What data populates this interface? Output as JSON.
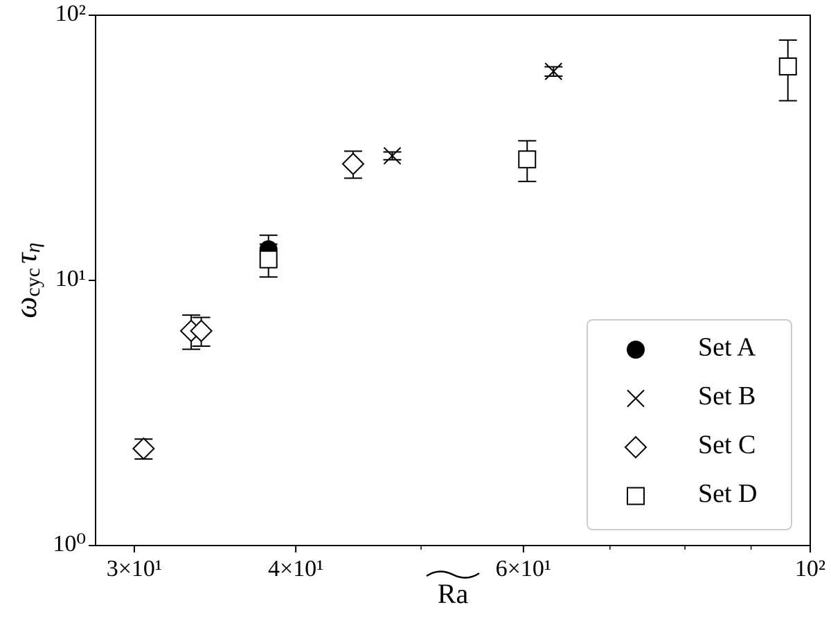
{
  "chart_data": {
    "type": "scatter",
    "xlabel": "Ra",
    "ylabel": [
      "ω",
      "cyc",
      "τ",
      "η"
    ],
    "xscale": "log",
    "yscale": "log",
    "xlim": [
      28,
      100
    ],
    "ylim": [
      1,
      100
    ],
    "xticks": [
      {
        "value": 30,
        "label": "3×10¹"
      },
      {
        "value": 40,
        "label": "4×10¹"
      },
      {
        "value": 60,
        "label": "6×10¹"
      },
      {
        "value": 100,
        "label": "10²"
      }
    ],
    "xminor_ticks": [
      50,
      70,
      80,
      90
    ],
    "yticks": [
      {
        "value": 1,
        "label": "10⁰"
      },
      {
        "value": 10,
        "label": "10¹"
      },
      {
        "value": 100,
        "label": "10²"
      }
    ],
    "legend_position": "lower right",
    "series": [
      {
        "name": "Set A",
        "color": "#000000",
        "marker": "circle",
        "x": [
          38.1
        ],
        "values": [
          13.1
        ],
        "errors": [
          1.7
        ]
      },
      {
        "name": "Set B",
        "color": "#000000",
        "marker": "x",
        "x": [
          47.5,
          63.3
        ],
        "values": [
          29.5,
          61.4
        ],
        "errors": [
          1.0,
          2.5
        ]
      },
      {
        "name": "Set C",
        "color": "#000000",
        "marker": "diamond",
        "x": [
          30.5,
          33.2,
          33.8,
          44.3
        ],
        "values": [
          2.32,
          6.45,
          6.45,
          27.5
        ],
        "errors": [
          0.2,
          0.95,
          0.8,
          3.2
        ]
      },
      {
        "name": "Set D",
        "color": "#000000",
        "marker": "square",
        "x": [
          38.1,
          60.4,
          96.1
        ],
        "values": [
          12.0,
          28.6,
          64.1
        ],
        "errors": [
          1.7,
          5.0,
          16.5
        ]
      }
    ]
  }
}
